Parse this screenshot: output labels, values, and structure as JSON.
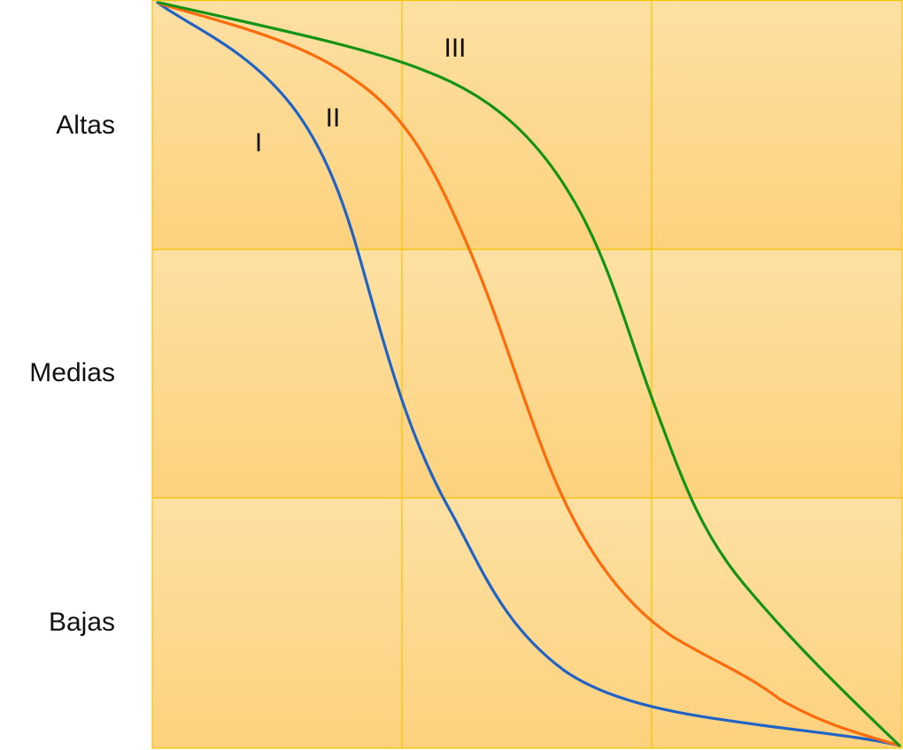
{
  "row_labels": [
    "Altas",
    "Medias",
    "Bajas"
  ],
  "curves": [
    {
      "label": "I",
      "color": "#1f63c6"
    },
    {
      "label": "II",
      "color": "#ff6a0a"
    },
    {
      "label": "III",
      "color": "#149414"
    }
  ],
  "colors": {
    "cell_top": "#fde0a2",
    "cell_bottom": "#fdd27e",
    "grid": "#f5c400"
  }
}
